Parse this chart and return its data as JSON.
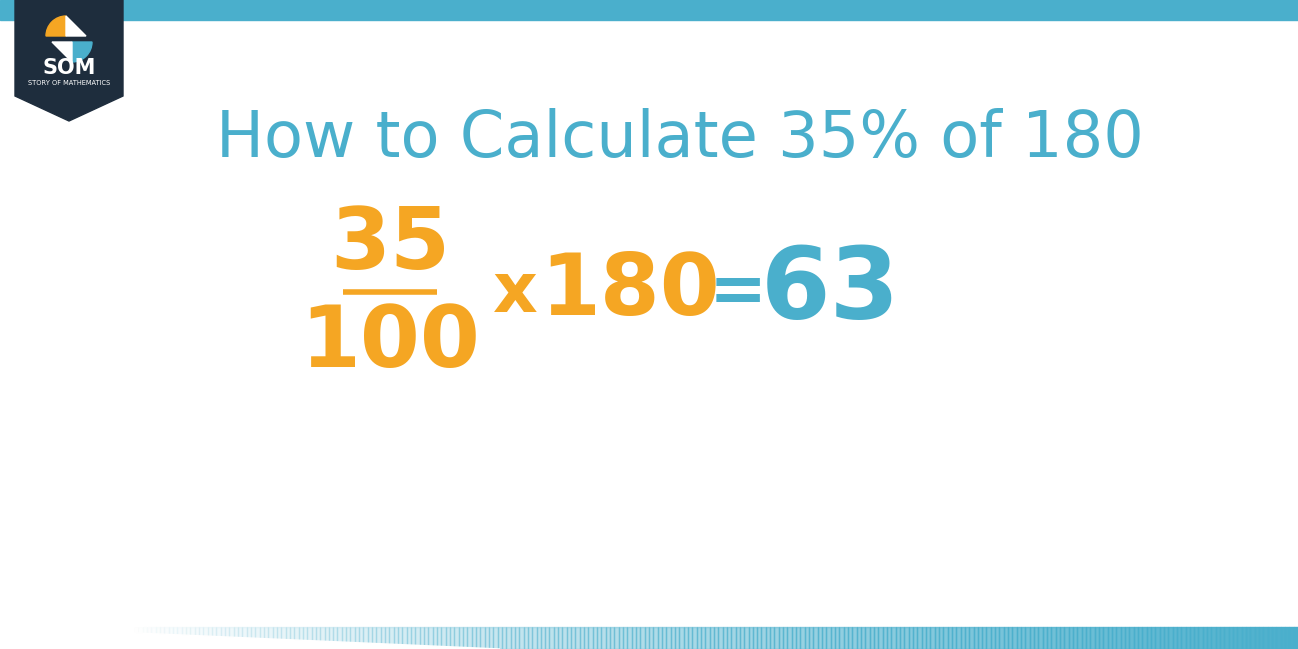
{
  "title": "How to Calculate 35% of 180",
  "title_color": "#4AAFCC",
  "title_fontsize": 46,
  "numerator": "35",
  "denominator": "100",
  "fraction_color": "#F5A623",
  "multiply_symbol": "x",
  "multiplier": "180",
  "multiplier_color": "#F5A623",
  "equals": "=",
  "equals_color": "#4AAFCC",
  "result": "63",
  "result_color": "#4AAFCC",
  "background_color": "#FFFFFF",
  "bar_color": "#4AAFCC",
  "logo_bg_color": "#1E2D3D",
  "logo_orange": "#F5A623",
  "logo_blue": "#4AAFCC",
  "logo_white": "#FFFFFF",
  "math_fontsize": 62,
  "symbol_fontsize": 50
}
